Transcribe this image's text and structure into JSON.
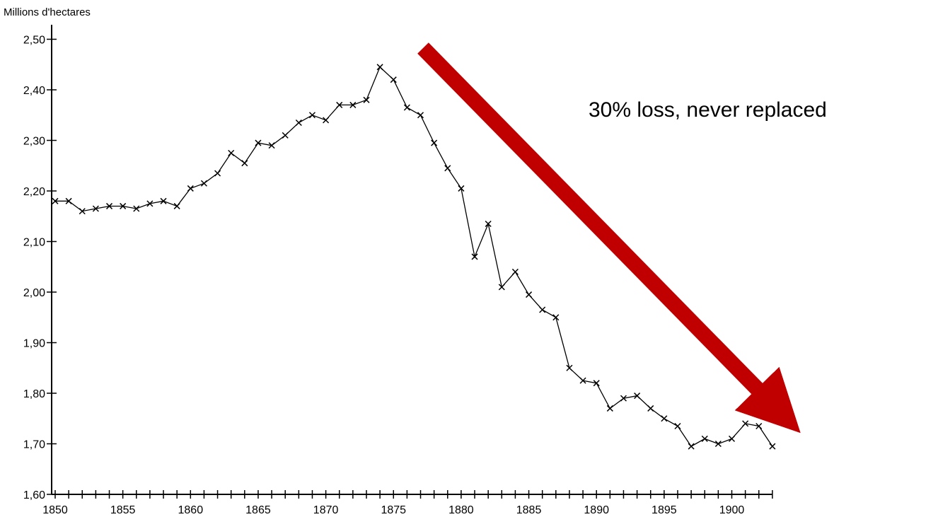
{
  "chart_data": {
    "type": "line",
    "ylabel": "Millions d'hectares",
    "xlabel": "",
    "title": "",
    "xlim": [
      1849.5,
      1904
    ],
    "ylim": [
      1.6,
      2.5
    ],
    "grid": false,
    "x_ticks": [
      "1850",
      "1855",
      "1860",
      "1865",
      "1870",
      "1875",
      "1880",
      "1885",
      "1890",
      "1895",
      "1900"
    ],
    "y_ticks": [
      "2,50",
      "2,40",
      "2,30",
      "2,20",
      "2,10",
      "2,00",
      "1,90",
      "1,80",
      "1,70",
      "1,60"
    ],
    "x_tick_values": [
      1850,
      1855,
      1860,
      1865,
      1870,
      1875,
      1880,
      1885,
      1890,
      1895,
      1900
    ],
    "y_tick_values": [
      2.5,
      2.4,
      2.3,
      2.2,
      2.1,
      2.0,
      1.9,
      1.8,
      1.7,
      1.6
    ],
    "series": [
      {
        "x": [
          1850,
          1851,
          1852,
          1853,
          1854,
          1855,
          1856,
          1857,
          1858,
          1859,
          1860,
          1861,
          1862,
          1863,
          1864,
          1865,
          1866,
          1867,
          1868,
          1869,
          1870,
          1871,
          1872,
          1873,
          1874,
          1875,
          1876,
          1877,
          1878,
          1879,
          1880,
          1881,
          1882,
          1883,
          1884,
          1885,
          1886,
          1887,
          1888,
          1889,
          1890,
          1891,
          1892,
          1893,
          1894,
          1895,
          1896,
          1897,
          1898,
          1899,
          1900,
          1901,
          1902,
          1903
        ],
        "values": [
          2.18,
          2.18,
          2.16,
          2.165,
          2.17,
          2.17,
          2.165,
          2.175,
          2.18,
          2.17,
          2.205,
          2.215,
          2.235,
          2.275,
          2.255,
          2.295,
          2.29,
          2.31,
          2.335,
          2.35,
          2.34,
          2.37,
          2.37,
          2.38,
          2.445,
          2.42,
          2.365,
          2.35,
          2.295,
          2.245,
          2.205,
          2.07,
          2.135,
          2.01,
          2.04,
          1.995,
          1.965,
          1.95,
          1.85,
          1.825,
          1.82,
          1.77,
          1.79,
          1.795,
          1.77,
          1.75,
          1.735,
          1.695,
          1.71,
          1.7,
          1.71,
          1.74,
          1.735,
          1.695
        ]
      }
    ],
    "annotations": [
      {
        "text": "30% loss, never replaced"
      }
    ],
    "arrow_color": "#c00000",
    "line_color": "#000000"
  }
}
